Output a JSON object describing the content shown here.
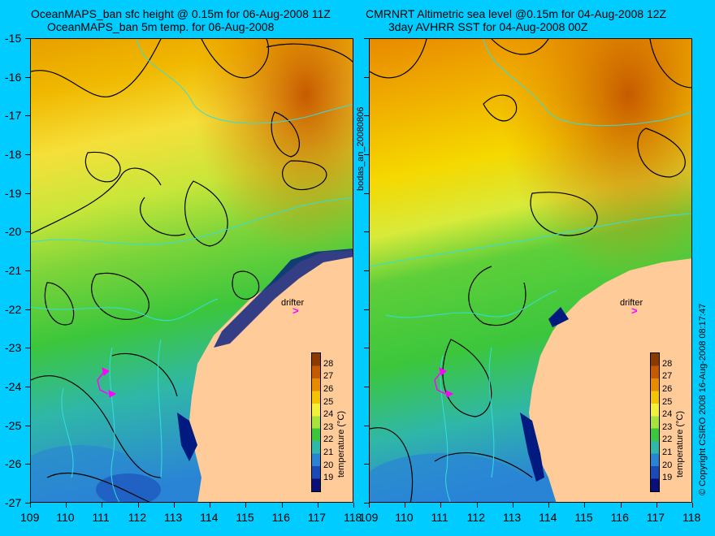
{
  "left_panel": {
    "title_line1": "OceanMAPS_ban sfc height @ 0.15m for 06-Aug-2008 11Z",
    "title_line2": "OceanMAPS_ban 5m temp. for 06-Aug-2008",
    "drifter_label": "drifter",
    "colorbar_title": "temperature (°C)"
  },
  "right_panel": {
    "title_line1": "CMRNRT Altimetric sea level  @0.15m  for 04-Aug-2008 12Z",
    "title_line2": "3day AVHRR SST for 04-Aug-2008 00Z",
    "drifter_label": "drifter",
    "colorbar_title": "temperature (°C)"
  },
  "center_label": "bodas_an_20080806",
  "right_label": "© Copyright CSIRO 2008   16-Aug-2008 08:17:47",
  "x_axis": {
    "ticks": [
      "109",
      "110",
      "111",
      "112",
      "113",
      "114",
      "115",
      "116",
      "117",
      "118"
    ]
  },
  "y_axis": {
    "ticks": [
      "-15",
      "-16",
      "-17",
      "-18",
      "-19",
      "-20",
      "-21",
      "-22",
      "-23",
      "-24",
      "-25",
      "-26",
      "-27"
    ]
  },
  "colorbar": {
    "ticks": [
      "28",
      "27",
      "26",
      "25",
      "24",
      "23",
      "22",
      "21",
      "20",
      "19"
    ],
    "colors": [
      "#8b3a00",
      "#c65a00",
      "#e88a00",
      "#f5c400",
      "#f3f03a",
      "#a7e33a",
      "#3cc63c",
      "#2fb7a8",
      "#2a84d6",
      "#1a4ab8",
      "#0a0f7a"
    ]
  },
  "colors": {
    "background": "#00CCFF",
    "land": "#FFCC99",
    "contour": "#000000",
    "isoline": "#33DDDD",
    "drifter": "#FF00FF"
  }
}
